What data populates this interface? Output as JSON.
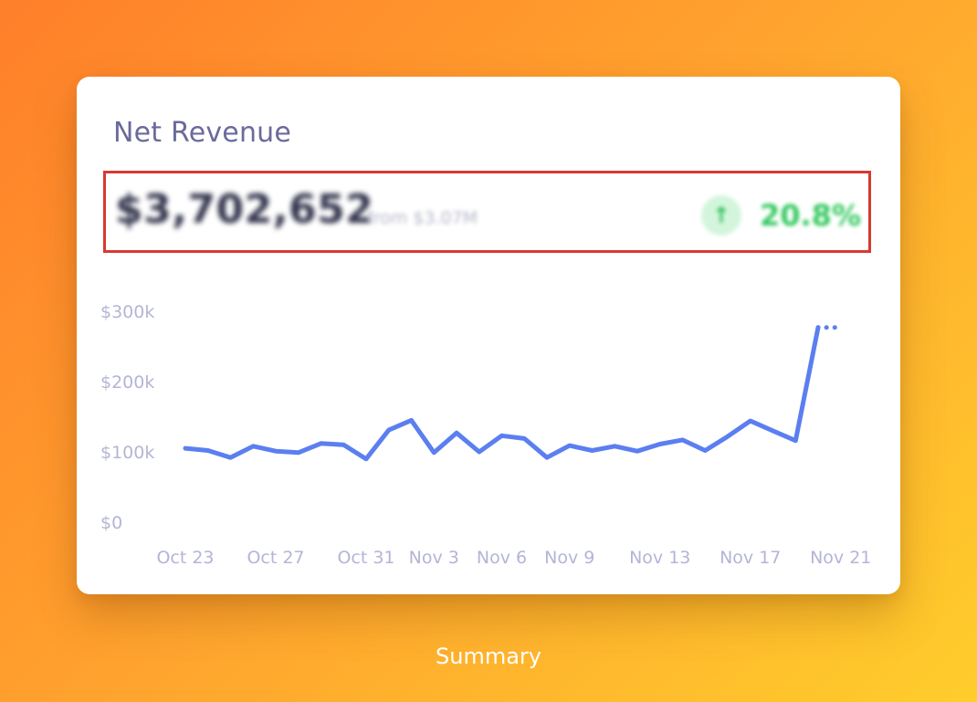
{
  "card": {
    "title": "Net Revenue",
    "amount": "$3,702,652",
    "comparison": "from $3.07M",
    "change_icon": "arrow-up-icon",
    "change_pct": "20.8%"
  },
  "colors": {
    "line": "#5b7ff0",
    "axis_text": "#b3b5d6",
    "highlight_border": "#d63a32",
    "positive": "#35c95f"
  },
  "chart_data": {
    "type": "line",
    "title": "",
    "xlabel": "",
    "ylabel": "",
    "ylim": [
      0,
      300000
    ],
    "y_ticks": [
      "$0",
      "$100k",
      "$200k",
      "$300k"
    ],
    "y_tick_values": [
      0,
      100000,
      200000,
      300000
    ],
    "x_tick_labels": [
      "Oct 23",
      "Oct 27",
      "Oct 31",
      "Nov 3",
      "Nov 6",
      "Nov 9",
      "Nov 13",
      "Nov 17",
      "Nov 21"
    ],
    "x_tick_indices": [
      0,
      4,
      8,
      11,
      14,
      17,
      21,
      25,
      29
    ],
    "grid": false,
    "series": [
      {
        "values": [
          105000,
          102000,
          92000,
          108000,
          101000,
          99000,
          112000,
          110000,
          90000,
          131000,
          145000,
          99000,
          127000,
          100000,
          123000,
          119000,
          92000,
          109000,
          102000,
          108000,
          101000,
          111000,
          117000,
          102000,
          122000,
          144000,
          130000,
          116000,
          277000
        ],
        "projected": [
          277000,
          277000
        ]
      }
    ]
  },
  "caption": "Summary"
}
